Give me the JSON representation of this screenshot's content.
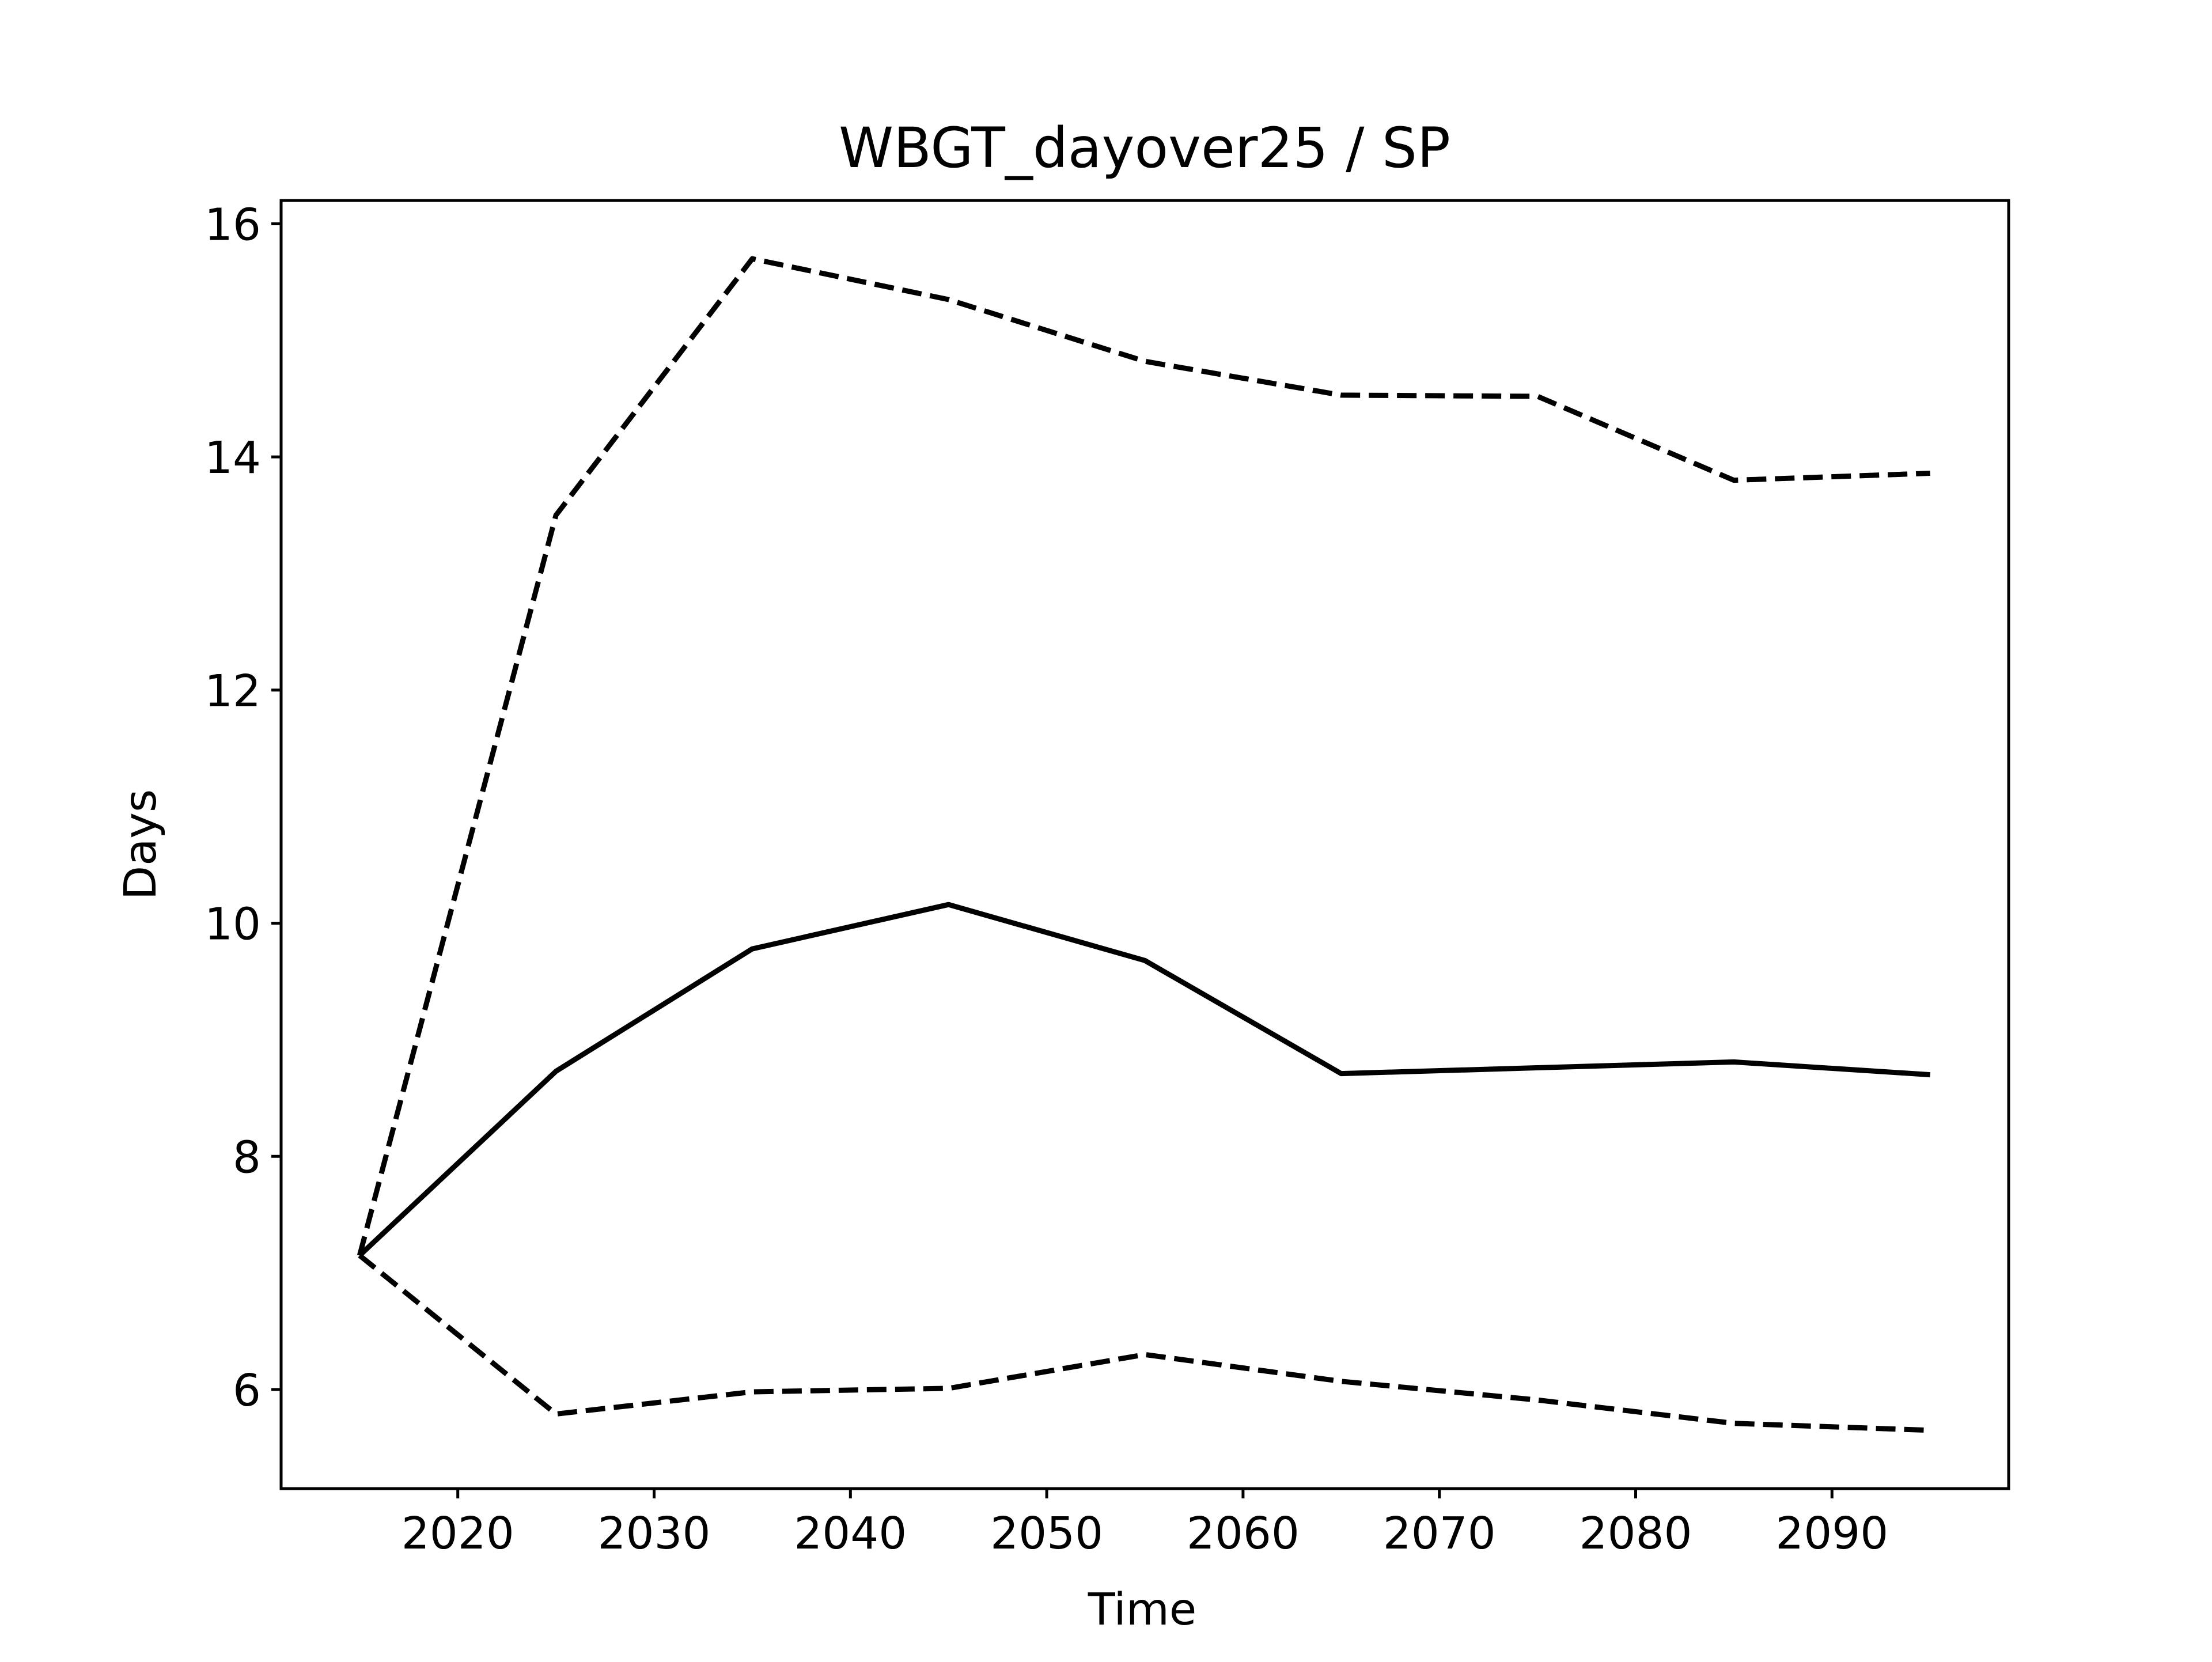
{
  "chart_data": {
    "type": "line",
    "title": "WBGT_dayover25 / SP",
    "xlabel": "Time",
    "ylabel": "Days",
    "xlim": [
      2011,
      2099
    ],
    "ylim": [
      5.15,
      16.2
    ],
    "xticks": [
      2020,
      2030,
      2040,
      2050,
      2060,
      2070,
      2080,
      2090
    ],
    "yticks": [
      6,
      8,
      10,
      12,
      14,
      16
    ],
    "grid": false,
    "legend": "none",
    "x": [
      2015,
      2025,
      2035,
      2045,
      2055,
      2065,
      2075,
      2085,
      2095
    ],
    "series": [
      {
        "style": "dashed",
        "color": "#000000",
        "values": [
          7.15,
          13.5,
          15.7,
          15.35,
          14.82,
          14.53,
          14.52,
          13.8,
          13.86
        ]
      },
      {
        "style": "solid",
        "color": "#000000",
        "values": [
          7.15,
          8.73,
          9.78,
          10.16,
          9.68,
          8.71,
          8.76,
          8.81,
          8.7
        ]
      },
      {
        "style": "dashed",
        "color": "#000000",
        "values": [
          7.15,
          5.79,
          5.98,
          6.01,
          6.3,
          6.07,
          5.91,
          5.71,
          5.65
        ]
      }
    ]
  }
}
